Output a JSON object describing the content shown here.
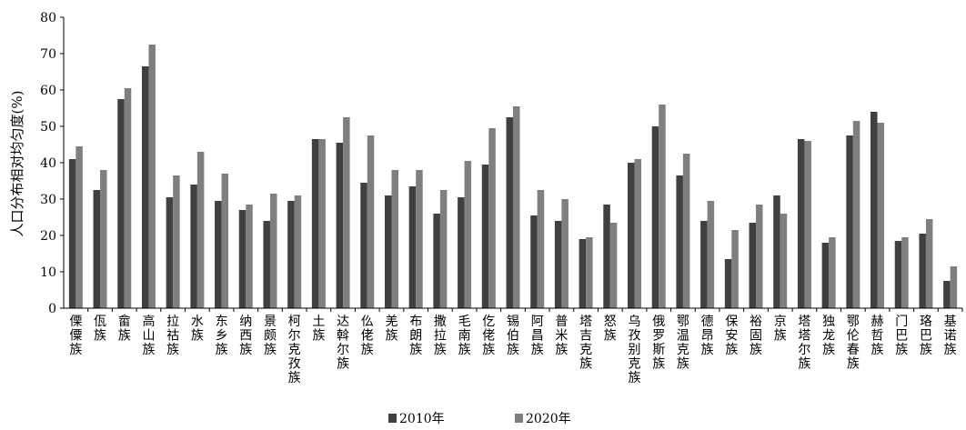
{
  "chart_data": {
    "type": "bar",
    "ylabel": "人口分布相对均匀度(%)",
    "ylim": [
      0,
      80
    ],
    "yticks": [
      0,
      10,
      20,
      30,
      40,
      50,
      60,
      70,
      80
    ],
    "grid": false,
    "legend_position": "bottom",
    "categories": [
      "傈僳族",
      "佤族",
      "畲族",
      "高山族",
      "拉祜族",
      "水族",
      "东乡族",
      "纳西族",
      "景颇族",
      "柯尔克孜族",
      "土族",
      "达斡尔族",
      "仫佬族",
      "羌族",
      "布朗族",
      "撒拉族",
      "毛南族",
      "仡佬族",
      "锡伯族",
      "阿昌族",
      "普米族",
      "塔吉克族",
      "怒族",
      "乌孜别克族",
      "俄罗斯族",
      "鄂温克族",
      "德昂族",
      "保安族",
      "裕固族",
      "京族",
      "塔塔尔族",
      "独龙族",
      "鄂伦春族",
      "赫哲族",
      "门巴族",
      "珞巴族",
      "基诺族"
    ],
    "series": [
      {
        "name": "2010年",
        "color": "#404040",
        "values": [
          41,
          32.5,
          57.5,
          66.5,
          30.5,
          34,
          29.5,
          27,
          24,
          29.5,
          46.5,
          45.5,
          34.5,
          31,
          33.5,
          26,
          30.5,
          39.5,
          52.5,
          25.5,
          24,
          19,
          28.5,
          40,
          50,
          36.5,
          24,
          13.5,
          23.5,
          31,
          46.5,
          18,
          47.5,
          54,
          18.5,
          20.5,
          7.5
        ]
      },
      {
        "name": "2020年",
        "color": "#7f7f7f",
        "values": [
          44.5,
          38,
          60.5,
          72.5,
          36.5,
          43,
          37,
          28.5,
          31.5,
          31,
          46.5,
          52.5,
          47.5,
          38,
          38,
          32.5,
          40.5,
          49.5,
          55.5,
          32.5,
          30,
          19.5,
          23.5,
          41,
          56,
          42.5,
          29.5,
          21.5,
          28.5,
          26,
          46,
          19.5,
          51.5,
          51,
          19.5,
          24.5,
          11.5
        ]
      }
    ]
  }
}
